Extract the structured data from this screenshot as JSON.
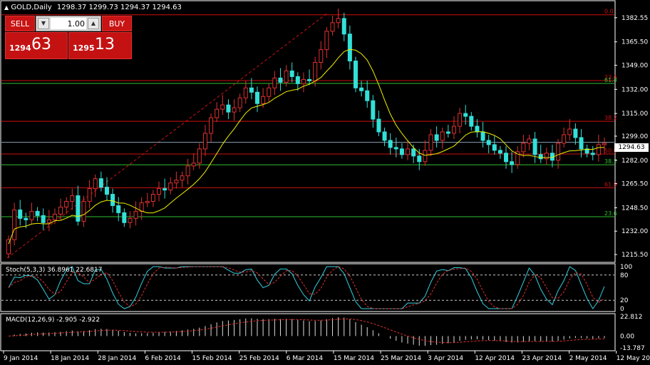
{
  "title": {
    "symbol": "GOLD,Daily",
    "ohlc": "1298.37 1299.73 1294.37 1294.63",
    "triangle": "▲"
  },
  "trade_panel": {
    "sell_label": "SELL",
    "buy_label": "BUY",
    "lot": "1.00",
    "sell_small": "1294",
    "sell_big": "63",
    "buy_small": "1295",
    "buy_big": "13",
    "accent": "#c81414"
  },
  "price_axis": {
    "ticks": [
      "1382.55",
      "1365.50",
      "1349.00",
      "1332.00",
      "1315.00",
      "1299.00",
      "1282.00",
      "1265.50",
      "1248.50",
      "1232.00",
      "1215.50"
    ],
    "last_price": "1294.63"
  },
  "fib_levels": [
    {
      "label": "0.0",
      "color": "#d01010",
      "value": 1384.6
    },
    {
      "label": "23.6",
      "color": "#d01010",
      "value": 1338.2
    },
    {
      "label": "61.8",
      "color": "#2fbf2f",
      "value": 1336.2
    },
    {
      "label": "38.2",
      "color": "#d01010",
      "value": 1309.5
    },
    {
      "label": "50.0",
      "color": "#d01010",
      "value": 1286.4
    },
    {
      "label": "38.2",
      "color": "#2fbf2f",
      "value": 1278.8
    },
    {
      "label": "61.8",
      "color": "#d01010",
      "value": 1262.6
    },
    {
      "label": "23.6",
      "color": "#2fbf2f",
      "value": 1242.2
    }
  ],
  "date_axis": [
    "9 Jan 2014",
    "18 Jan 2014",
    "28 Jan 2014",
    "6 Feb 2014",
    "15 Feb 2014",
    "25 Feb 2014",
    "6 Mar 2014",
    "15 Mar 2014",
    "25 Mar 2014",
    "3 Apr 2014",
    "12 Apr 2014",
    "23 Apr 2014",
    "2 May 2014",
    "12 May 2014"
  ],
  "stoch": {
    "label": "Stoch(5,3,3) 36.8961 22.6817",
    "ticks": [
      "100",
      "80",
      "20",
      "0"
    ]
  },
  "macd": {
    "label": "MACD(12,26,9) -2.905 -2.922",
    "ticks": [
      "22.812",
      "0.00",
      "-13.787"
    ]
  },
  "chart_data": {
    "type": "candlestick",
    "symbol": "GOLD",
    "timeframe": "Daily",
    "close": [
      1226,
      1247,
      1241,
      1240,
      1246,
      1243,
      1238,
      1240,
      1244,
      1249,
      1253,
      1257,
      1239,
      1253,
      1262,
      1269,
      1263,
      1258,
      1250,
      1245,
      1238,
      1241,
      1246,
      1252,
      1253,
      1258,
      1262,
      1261,
      1266,
      1268,
      1271,
      1278,
      1280,
      1290,
      1301,
      1312,
      1318,
      1321,
      1316,
      1319,
      1326,
      1333,
      1330,
      1322,
      1327,
      1333,
      1340,
      1337,
      1345,
      1341,
      1336,
      1339,
      1338,
      1351,
      1360,
      1373,
      1379,
      1382,
      1371,
      1352,
      1333,
      1331,
      1324,
      1311,
      1302,
      1296,
      1291,
      1290,
      1286,
      1290,
      1285,
      1281,
      1289,
      1300,
      1296,
      1302,
      1301,
      1306,
      1315,
      1313,
      1306,
      1302,
      1296,
      1293,
      1289,
      1287,
      1281,
      1279,
      1288,
      1294,
      1297,
      1286,
      1283,
      1287,
      1282,
      1294,
      1300,
      1304,
      1298,
      1290,
      1287,
      1286,
      1293,
      1294
    ],
    "ylim": [
      1210,
      1392
    ]
  }
}
